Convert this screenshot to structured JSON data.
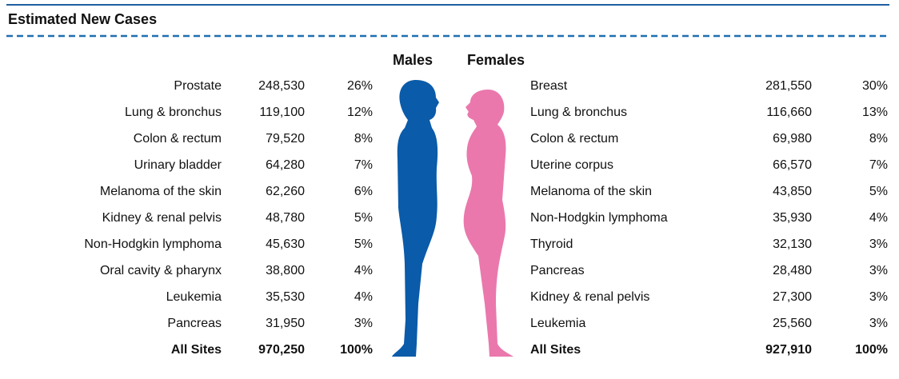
{
  "header": {
    "title": "Estimated New Cases"
  },
  "males": {
    "label": "Males",
    "rows": [
      [
        "Prostate",
        "248,530",
        "26%"
      ],
      [
        "Lung & bronchus",
        "119,100",
        "12%"
      ],
      [
        "Colon & rectum",
        "79,520",
        "8%"
      ],
      [
        "Urinary bladder",
        "64,280",
        "7%"
      ],
      [
        "Melanoma of the skin",
        "62,260",
        "6%"
      ],
      [
        "Kidney & renal pelvis",
        "48,780",
        "5%"
      ],
      [
        "Non-Hodgkin lymphoma",
        "45,630",
        "5%"
      ],
      [
        "Oral cavity & pharynx",
        "38,800",
        "4%"
      ],
      [
        "Leukemia",
        "35,530",
        "4%"
      ],
      [
        "Pancreas",
        "31,950",
        "3%"
      ]
    ],
    "total": [
      "All Sites",
      "970,250",
      "100%"
    ]
  },
  "females": {
    "label": "Females",
    "rows": [
      [
        "Breast",
        "281,550",
        "30%"
      ],
      [
        "Lung & bronchus",
        "116,660",
        "13%"
      ],
      [
        "Colon & rectum",
        "69,980",
        "8%"
      ],
      [
        "Uterine corpus",
        "66,570",
        "7%"
      ],
      [
        "Melanoma of the skin",
        "43,850",
        "5%"
      ],
      [
        "Non-Hodgkin lymphoma",
        "35,930",
        "4%"
      ],
      [
        "Thyroid",
        "32,130",
        "3%"
      ],
      [
        "Pancreas",
        "28,480",
        "3%"
      ],
      [
        "Kidney & renal pelvis",
        "27,300",
        "3%"
      ],
      [
        "Leukemia",
        "25,560",
        "3%"
      ]
    ],
    "total": [
      "All Sites",
      "927,910",
      "100%"
    ]
  }
}
